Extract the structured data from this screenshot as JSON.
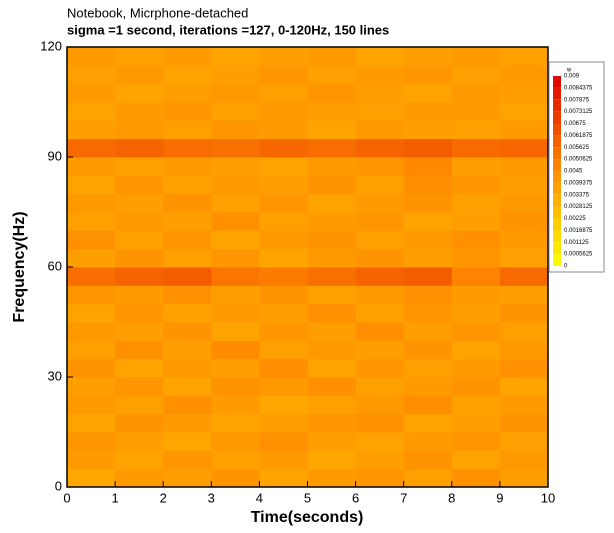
{
  "chart_data": {
    "type": "heatmap",
    "title": "Notebook, Micrphone-detached",
    "subtitle": "sigma =1 second, iterations =127, 0-120Hz, 150 lines",
    "x_label": "Time(seconds)",
    "y_label": "Frequency(Hz)",
    "xlim": [
      0,
      10
    ],
    "ylim": [
      0,
      120
    ],
    "xticks": [
      0,
      1,
      2,
      3,
      4,
      5,
      6,
      7,
      8,
      9,
      10
    ],
    "yticks": [
      0,
      30,
      60,
      90,
      120
    ],
    "xbins": [
      0,
      1,
      2,
      3,
      4,
      5,
      6,
      7,
      8,
      9,
      10
    ],
    "ybins": [
      0,
      5,
      10,
      15,
      20,
      25,
      30,
      35,
      40,
      45,
      50,
      55,
      60,
      65,
      70,
      75,
      80,
      85,
      90,
      95,
      100,
      105,
      110,
      115,
      120
    ],
    "z": [
      [
        0.0035,
        0.004,
        0.0038,
        0.0042,
        0.0036,
        0.0039,
        0.0041,
        0.0037,
        0.0043,
        0.0038
      ],
      [
        0.0039,
        0.0036,
        0.0041,
        0.0037,
        0.004,
        0.0035,
        0.0038,
        0.0042,
        0.0036,
        0.004
      ],
      [
        0.0041,
        0.0038,
        0.0035,
        0.004,
        0.0043,
        0.0038,
        0.0036,
        0.0039,
        0.0041,
        0.0037
      ],
      [
        0.0036,
        0.0042,
        0.0039,
        0.0036,
        0.0038,
        0.0041,
        0.0043,
        0.0036,
        0.0038,
        0.0042
      ],
      [
        0.004,
        0.0037,
        0.0043,
        0.0039,
        0.0035,
        0.0037,
        0.004,
        0.0044,
        0.0037,
        0.0039
      ],
      [
        0.0038,
        0.0041,
        0.0036,
        0.0042,
        0.004,
        0.0043,
        0.0037,
        0.0039,
        0.0042,
        0.0036
      ],
      [
        0.0042,
        0.0036,
        0.004,
        0.0038,
        0.0044,
        0.0036,
        0.0041,
        0.0037,
        0.0039,
        0.0043
      ],
      [
        0.0037,
        0.0043,
        0.0038,
        0.0045,
        0.0037,
        0.004,
        0.0038,
        0.0042,
        0.0036,
        0.004
      ],
      [
        0.004,
        0.0038,
        0.0042,
        0.0036,
        0.0041,
        0.0038,
        0.0044,
        0.0038,
        0.0041,
        0.0037
      ],
      [
        0.0036,
        0.0041,
        0.0037,
        0.004,
        0.0038,
        0.0043,
        0.0037,
        0.0041,
        0.0038,
        0.0042
      ],
      [
        0.0041,
        0.0039,
        0.0043,
        0.0038,
        0.0042,
        0.0037,
        0.004,
        0.0043,
        0.0039,
        0.0038
      ],
      [
        0.0055,
        0.0058,
        0.006,
        0.0052,
        0.005,
        0.0054,
        0.0058,
        0.006,
        0.0048,
        0.0056
      ],
      [
        0.0038,
        0.0042,
        0.0037,
        0.0041,
        0.0036,
        0.004,
        0.0042,
        0.0038,
        0.0041,
        0.0037
      ],
      [
        0.0043,
        0.0037,
        0.0041,
        0.0036,
        0.004,
        0.0042,
        0.0037,
        0.004,
        0.0043,
        0.0039
      ],
      [
        0.0037,
        0.004,
        0.0038,
        0.0043,
        0.0037,
        0.0039,
        0.0041,
        0.0036,
        0.0038,
        0.0042
      ],
      [
        0.004,
        0.0038,
        0.0042,
        0.0037,
        0.0041,
        0.0036,
        0.0039,
        0.0042,
        0.0037,
        0.004
      ],
      [
        0.0036,
        0.0041,
        0.0037,
        0.004,
        0.0038,
        0.0042,
        0.0037,
        0.0044,
        0.0041,
        0.0038
      ],
      [
        0.0039,
        0.0037,
        0.004,
        0.0038,
        0.0036,
        0.0039,
        0.0041,
        0.0046,
        0.0038,
        0.004
      ],
      [
        0.0056,
        0.0058,
        0.0055,
        0.0054,
        0.0057,
        0.0055,
        0.0058,
        0.006,
        0.0056,
        0.0057
      ],
      [
        0.0038,
        0.004,
        0.0037,
        0.0041,
        0.0039,
        0.0036,
        0.004,
        0.0038,
        0.0037,
        0.0039
      ],
      [
        0.0036,
        0.0039,
        0.0041,
        0.0037,
        0.004,
        0.0038,
        0.0037,
        0.004,
        0.0039,
        0.0036
      ],
      [
        0.0039,
        0.0036,
        0.0038,
        0.004,
        0.0037,
        0.0041,
        0.0038,
        0.0036,
        0.004,
        0.0038
      ],
      [
        0.0037,
        0.004,
        0.0036,
        0.0038,
        0.0041,
        0.0037,
        0.0039,
        0.0041,
        0.0037,
        0.0039
      ],
      [
        0.004,
        0.0037,
        0.0039,
        0.0036,
        0.0038,
        0.004,
        0.0036,
        0.0038,
        0.004,
        0.0037
      ]
    ],
    "colorbar": {
      "title": "w",
      "ticks": [
        0.009,
        0.0084375,
        0.007875,
        0.0073125,
        0.00675,
        0.0061875,
        0.005625,
        0.0050625,
        0.0045,
        0.0039375,
        0.003375,
        0.0028125,
        0.00225,
        0.0016875,
        0.001125,
        0.0005625,
        0
      ],
      "colors": [
        "#ffff00",
        "#ff8c00",
        "#dc0000"
      ]
    }
  }
}
